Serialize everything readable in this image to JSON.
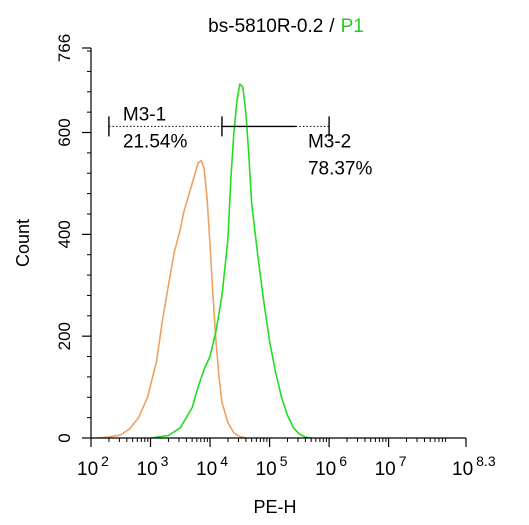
{
  "chart_data": {
    "type": "line",
    "title": "bs-5810R-0.2",
    "title_separator": "/",
    "title_gate": "P1",
    "xlabel": "PE-H",
    "ylabel": "Count",
    "x_scale": "log",
    "xlim": [
      100,
      199526231
    ],
    "ylim": [
      0,
      766
    ],
    "x_ticks": [
      {
        "value": 100,
        "base": "10",
        "exp": "2"
      },
      {
        "value": 1000,
        "base": "10",
        "exp": "3"
      },
      {
        "value": 10000,
        "base": "10",
        "exp": "4"
      },
      {
        "value": 100000,
        "base": "10",
        "exp": "5"
      },
      {
        "value": 1000000,
        "base": "10",
        "exp": "6"
      },
      {
        "value": 10000000,
        "base": "10",
        "exp": "7"
      },
      {
        "value": 199526231,
        "base": "10",
        "exp": "8.3"
      }
    ],
    "y_ticks": [
      0,
      200,
      400,
      600,
      766
    ],
    "series": [
      {
        "color": "#f0a060",
        "x": [
          126,
          200,
          316,
          447,
          631,
          891,
          1259,
          1585,
          1995,
          2512,
          3162,
          3548,
          3981,
          4467,
          5012,
          5623,
          6310,
          7079,
          7943,
          8913,
          10000,
          11220,
          12589,
          14125,
          15849,
          19953,
          25119,
          31623,
          39811
        ],
        "y": [
          0,
          2,
          6,
          18,
          40,
          80,
          150,
          230,
          300,
          365,
          410,
          440,
          460,
          480,
          500,
          520,
          540,
          545,
          530,
          470,
          380,
          280,
          190,
          120,
          70,
          30,
          10,
          3,
          0
        ]
      },
      {
        "color": "#22dd22",
        "x": [
          1000,
          2000,
          3162,
          5012,
          6310,
          7943,
          10000,
          12589,
          15849,
          19953,
          22387,
          25119,
          28184,
          31623,
          35481,
          39811,
          44668,
          50119,
          63096,
          79433,
          100000,
          125893,
          158489,
          199526,
          251189,
          316228,
          398107,
          501187
        ],
        "y": [
          0,
          5,
          20,
          60,
          100,
          135,
          160,
          210,
          280,
          390,
          510,
          600,
          660,
          695,
          690,
          640,
          560,
          460,
          360,
          270,
          190,
          130,
          80,
          45,
          20,
          8,
          2,
          0
        ]
      }
    ],
    "gates": [
      {
        "name": "M3-1",
        "percent": "21.54%",
        "range": [
          200,
          15849
        ]
      },
      {
        "name": "M3-2",
        "percent": "78.37%",
        "range": [
          15849,
          1000000
        ]
      }
    ],
    "gate_level": 612,
    "colors": {
      "title_gate": "#22cc22",
      "axis": "#000000"
    }
  }
}
